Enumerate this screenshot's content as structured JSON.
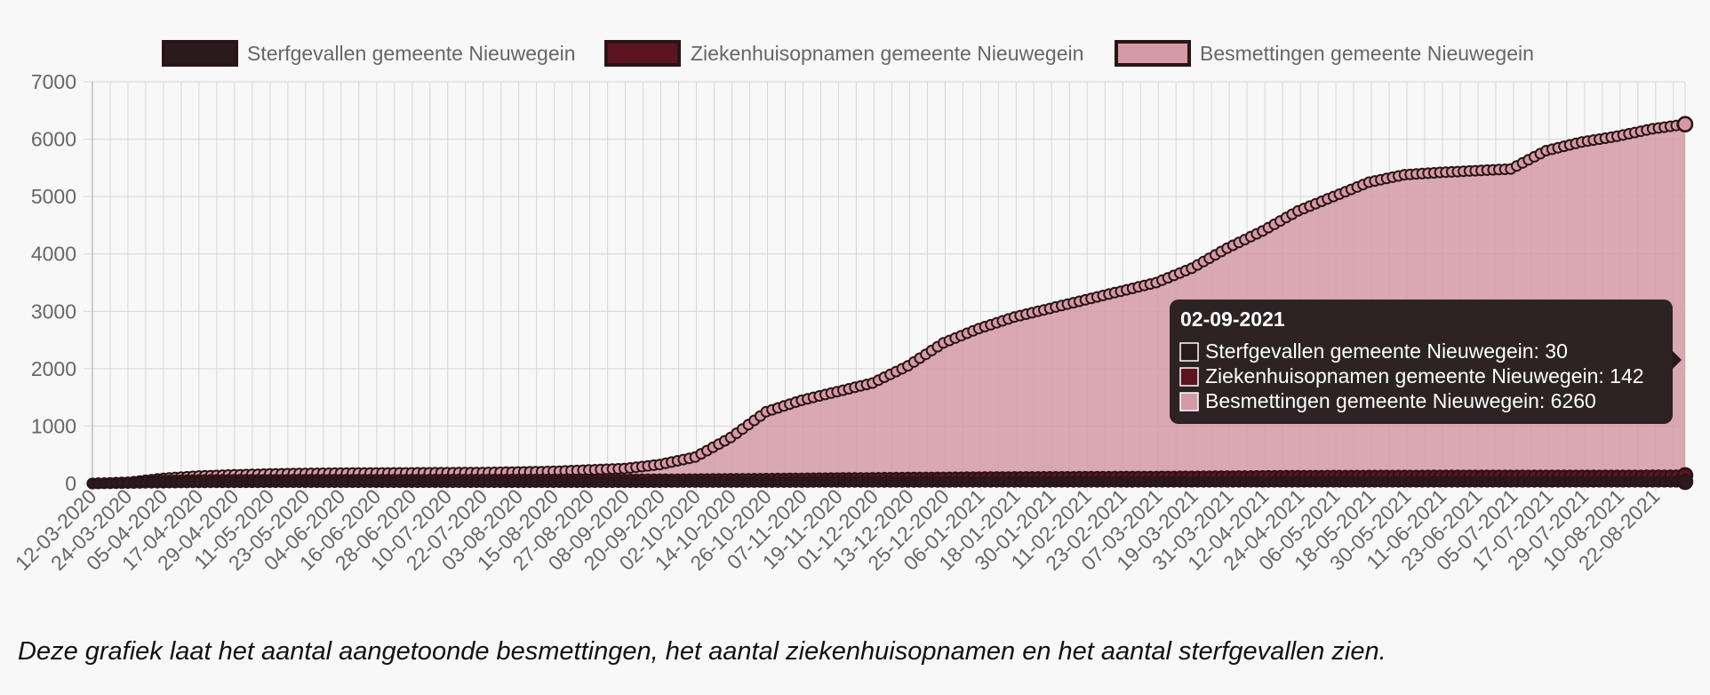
{
  "caption": "Deze grafiek laat het aantal aangetoonde besmettingen, het aantal ziekenhuisopnamen en het aantal sterfgevallen zien.",
  "colors": {
    "background": "#f8f8f8",
    "grid": "#d6d6d6",
    "text": "#666666",
    "point_border": "#2a1418",
    "tooltip_bg": "#241a1c"
  },
  "chart_data": {
    "type": "area",
    "x_start": "12-03-2020",
    "x_end": "02-09-2021",
    "x_tick_labels": [
      "12-03-2020",
      "24-03-2020",
      "05-04-2020",
      "17-04-2020",
      "29-04-2020",
      "11-05-2020",
      "23-05-2020",
      "04-06-2020",
      "16-06-2020",
      "28-06-2020",
      "10-07-2020",
      "22-07-2020",
      "03-08-2020",
      "15-08-2020",
      "27-08-2020",
      "08-09-2020",
      "20-09-2020",
      "02-10-2020",
      "14-10-2020",
      "26-10-2020",
      "07-11-2020",
      "19-11-2020",
      "01-12-2020",
      "13-12-2020",
      "25-12-2020",
      "06-01-2021",
      "18-01-2021",
      "30-01-2021",
      "11-02-2021",
      "23-02-2021",
      "07-03-2021",
      "19-03-2021",
      "31-03-2021",
      "12-04-2021",
      "24-04-2021",
      "06-05-2021",
      "18-05-2021",
      "30-05-2021",
      "11-06-2021",
      "23-06-2021",
      "05-07-2021",
      "17-07-2021",
      "29-07-2021",
      "10-08-2021",
      "22-08-2021"
    ],
    "y_ticks": [
      "0",
      "1000",
      "2000",
      "3000",
      "4000",
      "5000",
      "6000",
      "7000"
    ],
    "ylim": [
      0,
      7000
    ],
    "grid": true,
    "legend_position": "top",
    "series": [
      {
        "name": "Sterfgevallen gemeente Nieuwegein",
        "color": "#2a1a1e",
        "fill": false,
        "points": [
          [
            "12-03-2020",
            0
          ],
          [
            "05-04-2020",
            14
          ],
          [
            "17-04-2020",
            19
          ],
          [
            "11-05-2020",
            23
          ],
          [
            "20-09-2020",
            24
          ],
          [
            "14-10-2020",
            25
          ],
          [
            "01-12-2020",
            26
          ],
          [
            "25-12-2020",
            27
          ],
          [
            "19-03-2021",
            29
          ],
          [
            "02-09-2021",
            30
          ]
        ]
      },
      {
        "name": "Ziekenhuisopnamen gemeente Nieuwegein",
        "color": "#5c1420",
        "fill": false,
        "points": [
          [
            "12-03-2020",
            0
          ],
          [
            "24-03-2020",
            20
          ],
          [
            "05-04-2020",
            50
          ],
          [
            "17-04-2020",
            62
          ],
          [
            "29-04-2020",
            66
          ],
          [
            "23-05-2020",
            68
          ],
          [
            "27-08-2020",
            70
          ],
          [
            "20-09-2020",
            73
          ],
          [
            "14-10-2020",
            80
          ],
          [
            "07-11-2020",
            90
          ],
          [
            "01-12-2020",
            99
          ],
          [
            "25-12-2020",
            107
          ],
          [
            "18-01-2021",
            114
          ],
          [
            "23-02-2021",
            119
          ],
          [
            "19-03-2021",
            124
          ],
          [
            "24-04-2021",
            136
          ],
          [
            "30-05-2021",
            140
          ],
          [
            "02-09-2021",
            142
          ]
        ]
      },
      {
        "name": "Besmettingen gemeente Nieuwegein",
        "color": "#d49aa6",
        "fill": true,
        "points": [
          [
            "12-03-2020",
            0
          ],
          [
            "24-03-2020",
            20
          ],
          [
            "05-04-2020",
            90
          ],
          [
            "17-04-2020",
            130
          ],
          [
            "29-04-2020",
            150
          ],
          [
            "11-05-2020",
            165
          ],
          [
            "23-05-2020",
            175
          ],
          [
            "04-06-2020",
            180
          ],
          [
            "28-06-2020",
            185
          ],
          [
            "22-07-2020",
            190
          ],
          [
            "15-08-2020",
            210
          ],
          [
            "08-09-2020",
            260
          ],
          [
            "20-09-2020",
            330
          ],
          [
            "02-10-2020",
            460
          ],
          [
            "14-10-2020",
            800
          ],
          [
            "26-10-2020",
            1250
          ],
          [
            "07-11-2020",
            1450
          ],
          [
            "19-11-2020",
            1600
          ],
          [
            "01-12-2020",
            1750
          ],
          [
            "13-12-2020",
            2050
          ],
          [
            "25-12-2020",
            2450
          ],
          [
            "06-01-2021",
            2700
          ],
          [
            "18-01-2021",
            2900
          ],
          [
            "30-01-2021",
            3050
          ],
          [
            "11-02-2021",
            3200
          ],
          [
            "23-02-2021",
            3350
          ],
          [
            "07-03-2021",
            3500
          ],
          [
            "19-03-2021",
            3750
          ],
          [
            "31-03-2021",
            4100
          ],
          [
            "12-04-2021",
            4400
          ],
          [
            "24-04-2021",
            4750
          ],
          [
            "06-05-2021",
            5000
          ],
          [
            "18-05-2021",
            5250
          ],
          [
            "30-05-2021",
            5380
          ],
          [
            "11-06-2021",
            5420
          ],
          [
            "23-06-2021",
            5450
          ],
          [
            "05-07-2021",
            5480
          ],
          [
            "17-07-2021",
            5800
          ],
          [
            "29-07-2021",
            5950
          ],
          [
            "10-08-2021",
            6050
          ],
          [
            "22-08-2021",
            6180
          ],
          [
            "02-09-2021",
            6260
          ]
        ]
      }
    ],
    "tooltip": {
      "title": "02-09-2021",
      "lines": [
        "Sterfgevallen gemeente Nieuwegein: 30",
        "Ziekenhuisopnamen gemeente Nieuwegein: 142",
        "Besmettingen gemeente Nieuwegein: 6260"
      ]
    }
  }
}
